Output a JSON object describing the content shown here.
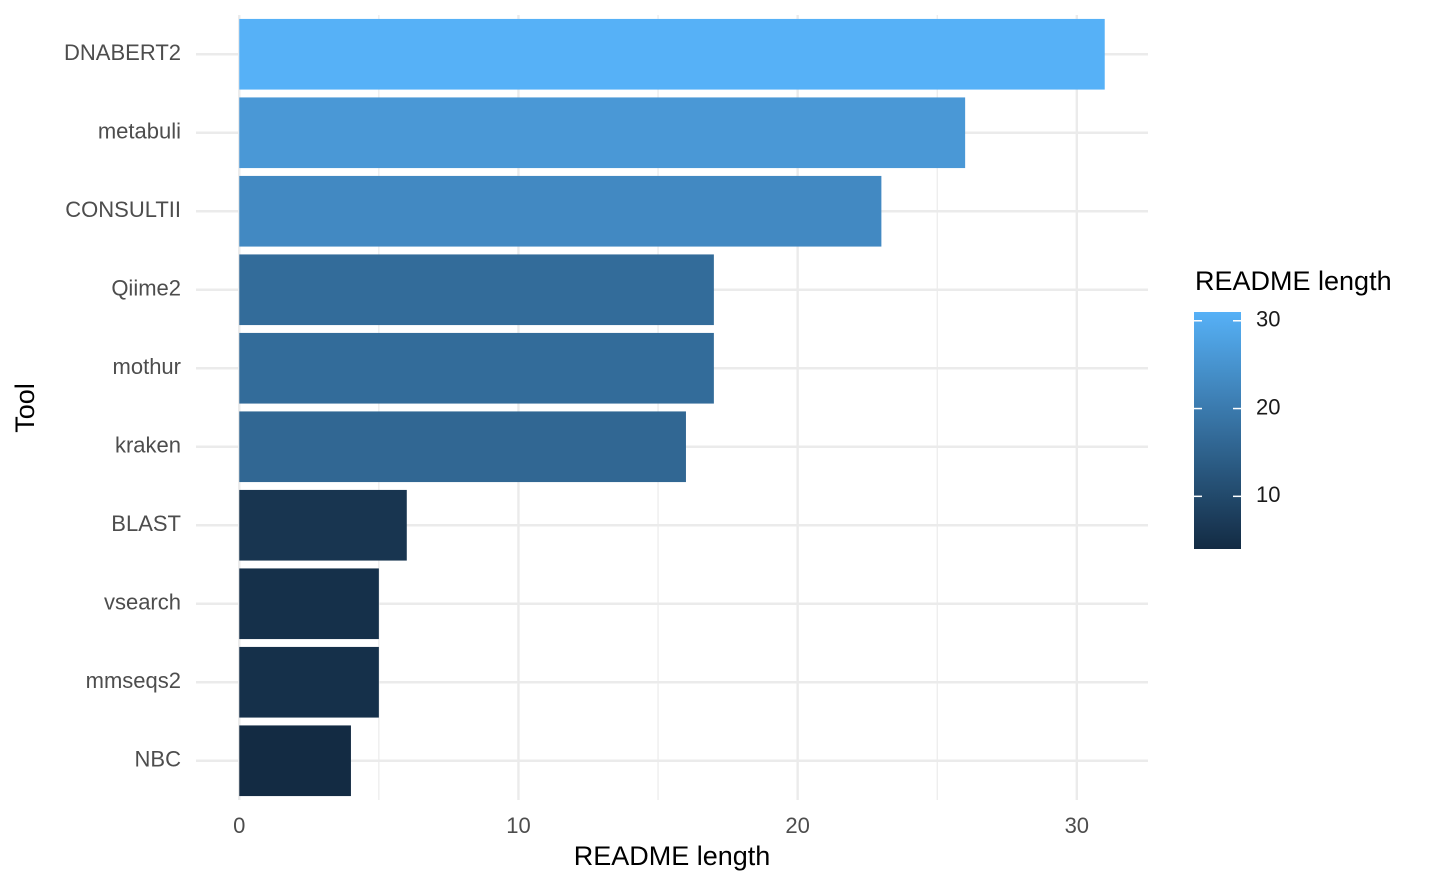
{
  "chart_data": {
    "type": "bar",
    "orientation": "horizontal",
    "x_label": "README length",
    "y_label": "Tool",
    "categories": [
      "DNABERT2",
      "metabuli",
      "CONSULTII",
      "Qiime2",
      "mothur",
      "kraken",
      "BLAST",
      "vsearch",
      "mmseqs2",
      "NBC"
    ],
    "values": [
      31,
      26,
      23,
      17,
      17,
      16,
      6,
      5,
      5,
      4
    ],
    "xlim": [
      -1.55,
      32.55
    ],
    "xticks": [
      0,
      10,
      20,
      30
    ],
    "xminorticks": [
      5,
      15,
      25
    ],
    "grid": true,
    "color_scale": {
      "title": "README length",
      "low": "#132B43",
      "high": "#56B1F7",
      "limits": [
        4,
        31
      ],
      "ticks": [
        10,
        20,
        30
      ]
    }
  }
}
